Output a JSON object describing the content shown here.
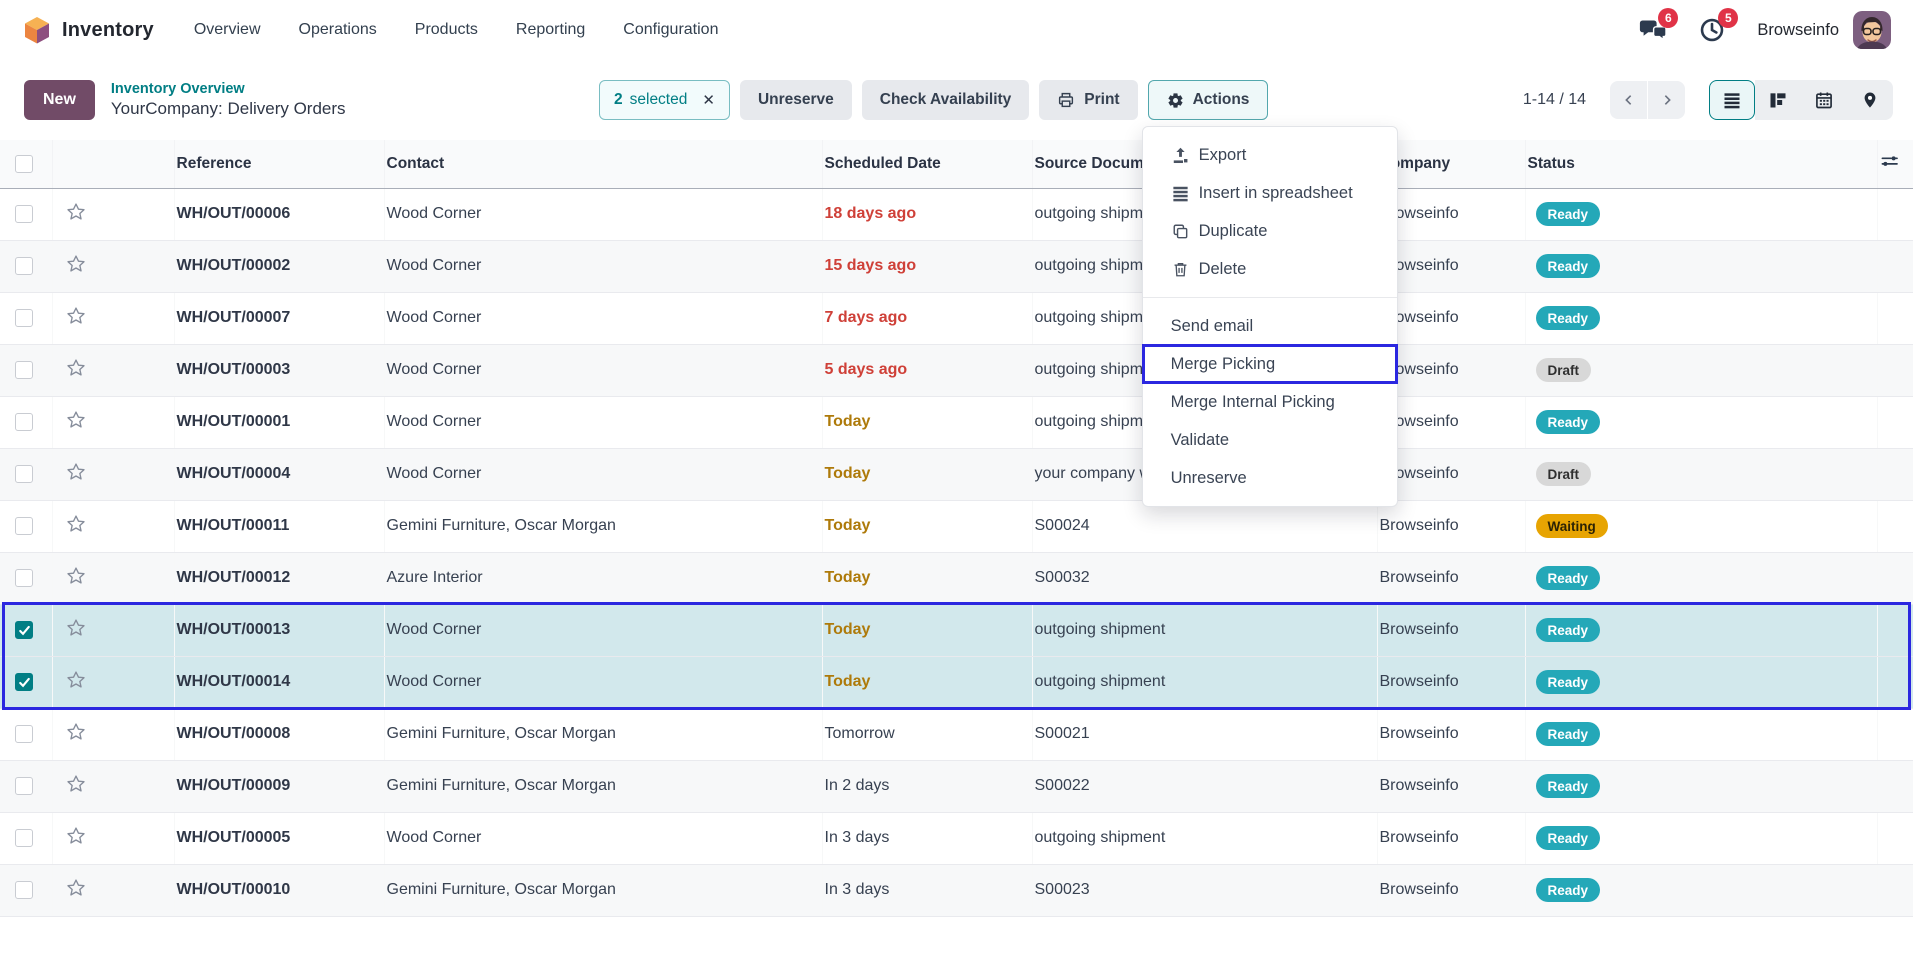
{
  "app": {
    "brand": "Inventory",
    "menus": [
      "Overview",
      "Operations",
      "Products",
      "Reporting",
      "Configuration"
    ]
  },
  "topbar": {
    "messages_count": "6",
    "activities_count": "5",
    "user_name": "Browseinfo"
  },
  "control_panel": {
    "new_button": "New",
    "breadcrumb_link": "Inventory Overview",
    "title": "YourCompany: Delivery Orders",
    "selection": {
      "count": "2",
      "label": "selected",
      "clear": "✕"
    },
    "buttons": {
      "unreserve": "Unreserve",
      "check_availability": "Check Availability",
      "print": "Print",
      "actions": "Actions"
    },
    "pager": {
      "range": "1-14 / 14"
    }
  },
  "actions_menu": {
    "items_with_icons": [
      {
        "label": "Export",
        "icon": "upload-icon"
      },
      {
        "label": "Insert in spreadsheet",
        "icon": "list-icon"
      },
      {
        "label": "Duplicate",
        "icon": "copy-icon"
      },
      {
        "label": "Delete",
        "icon": "trash-icon"
      }
    ],
    "items_plain": [
      {
        "label": "Send email",
        "highlighted": false
      },
      {
        "label": "Merge Picking",
        "highlighted": true
      },
      {
        "label": "Merge Internal Picking",
        "highlighted": false
      },
      {
        "label": "Validate",
        "highlighted": false
      },
      {
        "label": "Unreserve",
        "highlighted": false
      }
    ]
  },
  "table": {
    "columns": [
      "Reference",
      "Contact",
      "Scheduled Date",
      "Source Document",
      "Company",
      "Status"
    ],
    "rows": [
      {
        "reference": "WH/OUT/00006",
        "contact": "Wood Corner",
        "scheduled": "18 days ago",
        "scheduled_tone": "danger",
        "source": "outgoing shipment",
        "company": "Browseinfo",
        "status": "Ready",
        "status_tone": "ready",
        "selected": false
      },
      {
        "reference": "WH/OUT/00002",
        "contact": "Wood Corner",
        "scheduled": "15 days ago",
        "scheduled_tone": "danger",
        "source": "outgoing shipment",
        "company": "Browseinfo",
        "status": "Ready",
        "status_tone": "ready",
        "selected": false
      },
      {
        "reference": "WH/OUT/00007",
        "contact": "Wood Corner",
        "scheduled": "7 days ago",
        "scheduled_tone": "danger",
        "source": "outgoing shipment",
        "company": "Browseinfo",
        "status": "Ready",
        "status_tone": "ready",
        "selected": false
      },
      {
        "reference": "WH/OUT/00003",
        "contact": "Wood Corner",
        "scheduled": "5 days ago",
        "scheduled_tone": "danger",
        "source": "outgoing shipment",
        "company": "Browseinfo",
        "status": "Draft",
        "status_tone": "draft",
        "selected": false
      },
      {
        "reference": "WH/OUT/00001",
        "contact": "Wood Corner",
        "scheduled": "Today",
        "scheduled_tone": "warning",
        "source": "outgoing shipment",
        "company": "Browseinfo",
        "status": "Ready",
        "status_tone": "ready",
        "selected": false
      },
      {
        "reference": "WH/OUT/00004",
        "contact": "Wood Corner",
        "scheduled": "Today",
        "scheduled_tone": "warning",
        "source": "your company warehouse",
        "company": "Browseinfo",
        "status": "Draft",
        "status_tone": "draft",
        "selected": false
      },
      {
        "reference": "WH/OUT/00011",
        "contact": "Gemini Furniture, Oscar Morgan",
        "scheduled": "Today",
        "scheduled_tone": "warning",
        "source": "S00024",
        "company": "Browseinfo",
        "status": "Waiting",
        "status_tone": "waiting",
        "selected": false
      },
      {
        "reference": "WH/OUT/00012",
        "contact": "Azure Interior",
        "scheduled": "Today",
        "scheduled_tone": "warning",
        "source": "S00032",
        "company": "Browseinfo",
        "status": "Ready",
        "status_tone": "ready",
        "selected": false
      },
      {
        "reference": "WH/OUT/00013",
        "contact": "Wood Corner",
        "scheduled": "Today",
        "scheduled_tone": "warning",
        "source": "outgoing shipment",
        "company": "Browseinfo",
        "status": "Ready",
        "status_tone": "ready",
        "selected": true
      },
      {
        "reference": "WH/OUT/00014",
        "contact": "Wood Corner",
        "scheduled": "Today",
        "scheduled_tone": "warning",
        "source": "outgoing shipment",
        "company": "Browseinfo",
        "status": "Ready",
        "status_tone": "ready",
        "selected": true
      },
      {
        "reference": "WH/OUT/00008",
        "contact": "Gemini Furniture, Oscar Morgan",
        "scheduled": "Tomorrow",
        "scheduled_tone": "none",
        "source": "S00021",
        "company": "Browseinfo",
        "status": "Ready",
        "status_tone": "ready",
        "selected": false
      },
      {
        "reference": "WH/OUT/00009",
        "contact": "Gemini Furniture, Oscar Morgan",
        "scheduled": "In 2 days",
        "scheduled_tone": "none",
        "source": "S00022",
        "company": "Browseinfo",
        "status": "Ready",
        "status_tone": "ready",
        "selected": false
      },
      {
        "reference": "WH/OUT/00005",
        "contact": "Wood Corner",
        "scheduled": "In 3 days",
        "scheduled_tone": "none",
        "source": "outgoing shipment",
        "company": "Browseinfo",
        "status": "Ready",
        "status_tone": "ready",
        "selected": false
      },
      {
        "reference": "WH/OUT/00010",
        "contact": "Gemini Furniture, Oscar Morgan",
        "scheduled": "In 3 days",
        "scheduled_tone": "none",
        "source": "S00023",
        "company": "Browseinfo",
        "status": "Ready",
        "status_tone": "ready",
        "selected": false
      }
    ]
  },
  "colors": {
    "primary_teal": "#017e84",
    "new_button_purple": "#714B67",
    "ready_badge": "#24a8b8",
    "waiting_badge": "#e7a402",
    "draft_badge": "#d8d8d8",
    "danger_date": "#cf4038",
    "warning_date": "#ae7a0a",
    "selected_row_bg": "#d2e8ec",
    "selection_border_blue": "#2b27e0",
    "notification_badge_red": "#e03347"
  }
}
